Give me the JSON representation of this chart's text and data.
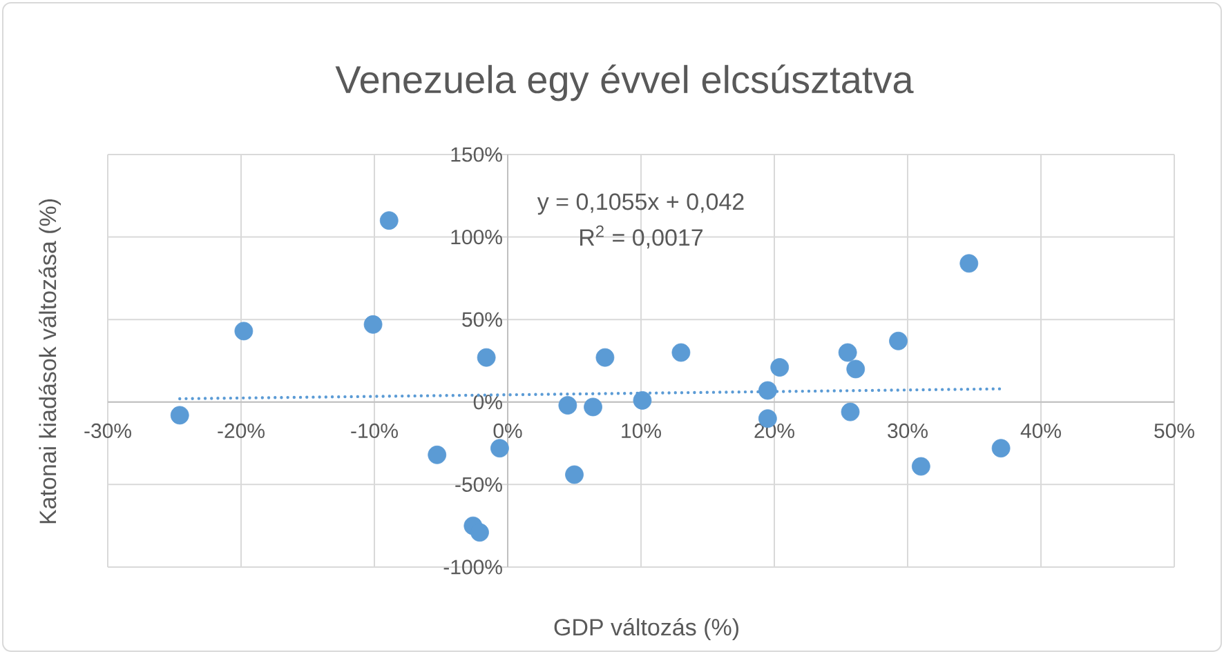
{
  "chart_data": {
    "type": "scatter",
    "title": "Venezuela egy évvel elcsúsztatva",
    "xlabel": "GDP változás (%)",
    "ylabel": "Katonai kiadások változása (%)",
    "annotations": [
      "y = 0,1055x + 0,042",
      "R$^{2}$ = 0,0017"
    ],
    "xlim": [
      -30,
      50
    ],
    "ylim": [
      -100,
      150
    ],
    "xticks": [
      {
        "value": -30,
        "label": "-30%"
      },
      {
        "value": -20,
        "label": "-20%"
      },
      {
        "value": -10,
        "label": "-10%"
      },
      {
        "value": 0,
        "label": "0%"
      },
      {
        "value": 10,
        "label": "10%"
      },
      {
        "value": 20,
        "label": "20%"
      },
      {
        "value": 30,
        "label": "30%"
      },
      {
        "value": 40,
        "label": "40%"
      },
      {
        "value": 50,
        "label": "50%"
      }
    ],
    "yticks": [
      {
        "value": -100,
        "label": "-100%"
      },
      {
        "value": -50,
        "label": "-50%"
      },
      {
        "value": 0,
        "label": "0%"
      },
      {
        "value": 50,
        "label": "50%"
      },
      {
        "value": 100,
        "label": "100%"
      },
      {
        "value": 150,
        "label": "150%"
      }
    ],
    "grid": true,
    "marker": "circle",
    "series": [
      {
        "color": "#5b9bd5",
        "x": [
          -24.6,
          -19.8,
          -8.9,
          -10.1,
          -1.6,
          -5.3,
          -2.6,
          -2.1,
          -0.6,
          4.5,
          6.4,
          5.0,
          7.3,
          10.1,
          13.0,
          20.4,
          19.5,
          19.5,
          25.5,
          26.1,
          25.7,
          29.3,
          34.6,
          37.0,
          31.0
        ],
        "values": [
          -8,
          43,
          110,
          47,
          27,
          -32,
          -75,
          -79,
          -28,
          -2,
          -3,
          -44,
          27,
          1,
          30,
          21,
          7,
          -10,
          30,
          20,
          -6,
          37,
          84,
          -28,
          -39
        ]
      },
      {
        "type": "line",
        "color": "#5b9bd5",
        "line_style": "dotted",
        "marker": "none",
        "x": [
          -24.6,
          37.0
        ],
        "values": [
          2,
          8
        ]
      }
    ]
  }
}
